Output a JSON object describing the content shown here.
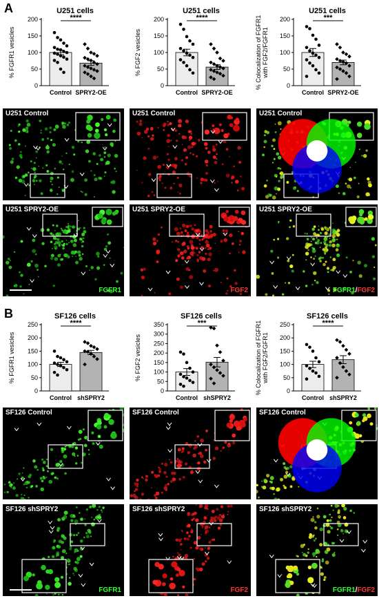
{
  "panels": [
    {
      "letter": "A",
      "charts": [
        {
          "type": "bar",
          "title": "U251 cells",
          "ylabel": "% FGFR1 vesicles",
          "ylim": [
            0,
            200
          ],
          "yticks": [
            0,
            50,
            100,
            150,
            200
          ],
          "categories": [
            "Control",
            "SPRY2-OE"
          ],
          "values": [
            100,
            68
          ],
          "errors": [
            7,
            7
          ],
          "significance": "****",
          "points": [
            [
              160,
              145,
              138,
              128,
              120,
              115,
              110,
              108,
              103,
              100,
              98,
              95,
              90,
              86,
              80,
              76,
              70,
              50,
              40
            ],
            [
              125,
              112,
              100,
              96,
              90,
              84,
              80,
              76,
              70,
              65,
              60,
              56,
              52,
              48,
              44,
              40,
              35,
              28,
              22
            ]
          ]
        },
        {
          "type": "bar",
          "title": "U251 cells",
          "ylabel": "% FGF2 vesicles",
          "ylim": [
            0,
            200
          ],
          "yticks": [
            0,
            50,
            100,
            150,
            200
          ],
          "categories": [
            "Control",
            "SPRY2-OE"
          ],
          "values": [
            100,
            56
          ],
          "errors": [
            10,
            7
          ],
          "significance": "****",
          "points": [
            [
              185,
              170,
              148,
              135,
              125,
              112,
              105,
              98,
              92,
              85,
              78,
              70,
              60,
              48,
              38
            ],
            [
              125,
              112,
              100,
              82,
              75,
              70,
              65,
              60,
              56,
              52,
              48,
              44,
              40,
              36,
              30,
              25,
              20
            ]
          ]
        },
        {
          "type": "bar",
          "title": "U251 cells",
          "ylabel": "% Colocalization of FGFR1 with FGF2/FGFR1",
          "ylim": [
            0,
            200
          ],
          "yticks": [
            0,
            50,
            100,
            150,
            200
          ],
          "categories": [
            "Control",
            "SPRY2-OE"
          ],
          "values": [
            100,
            70
          ],
          "errors": [
            12,
            7
          ],
          "significance": "***",
          "points": [
            [
              178,
              172,
              152,
              140,
              122,
              115,
              105,
              98,
              92,
              85,
              78,
              68,
              60,
              48,
              38,
              28
            ],
            [
              125,
              115,
              100,
              95,
              88,
              80,
              75,
              72,
              68,
              60,
              55,
              50,
              44,
              38,
              28,
              20
            ]
          ]
        }
      ],
      "images": [
        {
          "label": "U251 Control",
          "channel": "green",
          "inset": "br-small",
          "kind": "spots"
        },
        {
          "label": "U251 Control",
          "channel": "red",
          "inset": "br-small",
          "kind": "spots"
        },
        {
          "label": "U251 Control",
          "channel": "merge",
          "inset": "br-small",
          "kind": "spots",
          "wheel": true
        },
        {
          "label": "U251 SPRY2-OE",
          "channel": "green",
          "inset": "top",
          "kind": "cluster",
          "scalebar": true,
          "chan_label": "FGFR1"
        },
        {
          "label": "U251 SPRY2-OE",
          "channel": "red",
          "inset": "top",
          "kind": "cluster",
          "chan_label": "FGF2"
        },
        {
          "label": "U251 SPRY2-OE",
          "channel": "merge",
          "inset": "top",
          "kind": "cluster",
          "chan_label_a": "FGFR1",
          "chan_label_sep": "/",
          "chan_label_b": "FGF2"
        }
      ]
    },
    {
      "letter": "B",
      "charts": [
        {
          "type": "bar",
          "title": "SF126 cells",
          "ylabel": "% FGFR1 vesicles",
          "ylim": [
            0,
            250
          ],
          "yticks": [
            0,
            50,
            100,
            150,
            200,
            250
          ],
          "categories": [
            "Control",
            "shSPRY2"
          ],
          "values": [
            100,
            145
          ],
          "errors": [
            8,
            8
          ],
          "significance": "****",
          "points": [
            [
              150,
              130,
              125,
              118,
              110,
              105,
              100,
              95,
              88,
              80,
              70,
              60
            ],
            [
              185,
              180,
              170,
              165,
              158,
              150,
              148,
              140,
              130,
              120,
              100
            ]
          ]
        },
        {
          "type": "bar",
          "title": "SF126 cells",
          "ylabel": "% FGF2 vesicles",
          "ylim": [
            0,
            350
          ],
          "yticks": [
            0,
            50,
            100,
            150,
            200,
            250,
            300,
            350
          ],
          "categories": [
            "Control",
            "shSPRY2"
          ],
          "values": [
            100,
            152
          ],
          "errors": [
            18,
            25
          ],
          "significance": "***",
          "points": [
            [
              205,
              195,
              150,
              120,
              100,
              88,
              75,
              68,
              55,
              45,
              35,
              25
            ],
            [
              335,
              330,
              240,
              205,
              160,
              140,
              125,
              110,
              95,
              80,
              65,
              40
            ]
          ]
        },
        {
          "type": "bar",
          "title": "SF126 cells",
          "ylabel": "% Colocalization of FGFR1 with FGF2/FGFR1",
          "ylim": [
            0,
            250
          ],
          "yticks": [
            0,
            50,
            100,
            150,
            200,
            250
          ],
          "categories": [
            "Control",
            "shSPRY2"
          ],
          "values": [
            100,
            118
          ],
          "errors": [
            12,
            15
          ],
          "significance": "****",
          "points": [
            [
              175,
              165,
              150,
              125,
              110,
              95,
              85,
              75,
              68,
              55,
              45
            ],
            [
              192,
              185,
              170,
              155,
              140,
              125,
              105,
              90,
              75,
              62,
              50
            ]
          ]
        }
      ],
      "images": [
        {
          "label": "SF126 Control",
          "channel": "green",
          "inset": "tr",
          "kind": "diag"
        },
        {
          "label": "SF126 Control",
          "channel": "red",
          "inset": "tr",
          "kind": "diag"
        },
        {
          "label": "SF126 Control",
          "channel": "merge",
          "inset": "tr",
          "kind": "diag",
          "wheel": true
        },
        {
          "label": "SF126 shSPRY2",
          "channel": "green",
          "inset": "bl",
          "kind": "band",
          "scalebar": true,
          "chan_label": "FGFR1"
        },
        {
          "label": "SF126 shSPRY2",
          "channel": "red",
          "inset": "bl",
          "kind": "band",
          "chan_label": "FGF2"
        },
        {
          "label": "SF126 shSPRY2",
          "channel": "merge",
          "inset": "bl",
          "kind": "band",
          "chan_label_a": "FGFR1",
          "chan_label_sep": "/",
          "chan_label_b": "FGF2"
        }
      ]
    }
  ]
}
